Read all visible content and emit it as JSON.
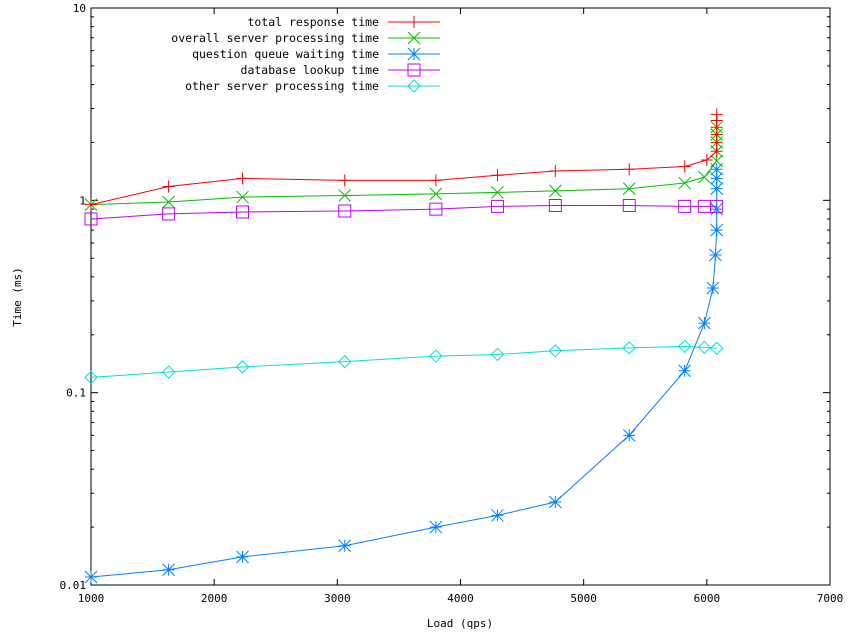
{
  "chart_data": {
    "type": "line",
    "xlabel": "Load (qps)",
    "ylabel": "Time (ms)",
    "xlim": [
      1000,
      7000
    ],
    "ylim": [
      0.01,
      10
    ],
    "yscale": "log",
    "xticks": [
      1000,
      2000,
      3000,
      4000,
      5000,
      6000,
      7000
    ],
    "yticks": [
      {
        "value": 10,
        "label": "10"
      },
      {
        "value": 1,
        "label": "1"
      },
      {
        "value": 0.1,
        "label": "0.1"
      },
      {
        "value": 0.01,
        "label": "0.01"
      }
    ],
    "grid": false,
    "legend_position": "top-left",
    "series": [
      {
        "name": "total response time",
        "color": "#ff0000",
        "marker": "plus",
        "x": [
          1000,
          1630,
          2230,
          3060,
          3800,
          4300,
          4770,
          5370,
          5820,
          6000,
          6080,
          6080,
          6080,
          6080,
          6080,
          6080
        ],
        "y": [
          0.95,
          1.18,
          1.3,
          1.27,
          1.27,
          1.35,
          1.42,
          1.45,
          1.5,
          1.62,
          1.8,
          2.0,
          2.2,
          2.4,
          2.6,
          2.8
        ]
      },
      {
        "name": "overall server processing time",
        "color": "#00c000",
        "marker": "x",
        "x": [
          1000,
          1630,
          2230,
          3060,
          3800,
          4300,
          4770,
          5370,
          5820,
          5980,
          6080,
          6080,
          6080,
          6080,
          6080
        ],
        "y": [
          0.95,
          0.98,
          1.04,
          1.06,
          1.08,
          1.1,
          1.12,
          1.15,
          1.23,
          1.32,
          1.6,
          1.8,
          2.0,
          2.2,
          2.4
        ]
      },
      {
        "name": "question queue waiting time",
        "color": "#0080ff",
        "marker": "star",
        "x": [
          1000,
          1630,
          2230,
          3060,
          3800,
          4300,
          4770,
          5370,
          5820,
          5980,
          6050,
          6070,
          6080,
          6080,
          6080,
          6080,
          6080
        ],
        "y": [
          0.011,
          0.012,
          0.014,
          0.016,
          0.02,
          0.023,
          0.027,
          0.06,
          0.13,
          0.23,
          0.35,
          0.52,
          0.7,
          0.9,
          1.15,
          1.3,
          1.45
        ]
      },
      {
        "name": "database lookup time",
        "color": "#c000ff",
        "marker": "square",
        "x": [
          1000,
          1630,
          2230,
          3060,
          3800,
          4300,
          4770,
          5370,
          5820,
          5980,
          6080
        ],
        "y": [
          0.8,
          0.85,
          0.87,
          0.88,
          0.9,
          0.93,
          0.94,
          0.94,
          0.93,
          0.93,
          0.93
        ]
      },
      {
        "name": "other server processing time",
        "color": "#00e0e0",
        "marker": "diamond",
        "x": [
          1000,
          1630,
          2230,
          3060,
          3800,
          4300,
          4770,
          5370,
          5820,
          5980,
          6080
        ],
        "y": [
          0.12,
          0.128,
          0.136,
          0.145,
          0.155,
          0.158,
          0.165,
          0.171,
          0.174,
          0.172,
          0.17
        ]
      }
    ]
  }
}
